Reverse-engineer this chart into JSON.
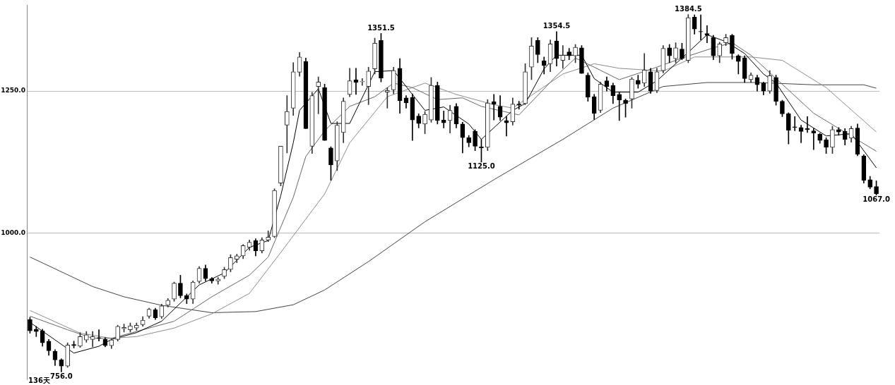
{
  "chart_data": {
    "type": "candlestick",
    "colors": [
      "#000000",
      "#000000",
      "#000000",
      "#000000",
      "#000000",
      "#000000",
      "#333333",
      "#000000",
      "#333333",
      "#333333",
      "#333333",
      "#000000",
      "#000000",
      "#333333",
      "#333333",
      "#333333",
      "#333333",
      "#333333",
      "#333333",
      "#333333",
      "#000000",
      "#333333",
      "#333333",
      "#333333",
      "#000000",
      "#000000",
      "#333333",
      "#333333",
      "#000000",
      "#000000",
      "#333333",
      "#333333",
      "#333333",
      "#333333",
      "#333333",
      "#333333",
      "#000000",
      "#333333",
      "#333333",
      "#333333",
      "#333333",
      "#333333",
      "#333333",
      "#333333",
      "#000000",
      "#333333",
      "#333333",
      "#000000",
      "#000000",
      "#333333",
      "#333333",
      "#333333",
      "#000000",
      "#333333",
      "#333333",
      "#333333",
      "#000000",
      "#333333",
      "#333333",
      "#000000",
      "#000000",
      "#000000",
      "#000000",
      "#333333",
      "#333333",
      "#000000",
      "#000000",
      "#333333",
      "#000000",
      "#000000",
      "#000000",
      "#000000",
      "#000000",
      "#333333",
      "#000000",
      "#000000",
      "#000000",
      "#333333",
      "#000000",
      "#333333",
      "#333333",
      "#000000",
      "#000000",
      "#333333",
      "#000000",
      "#333333",
      "#000000",
      "#333333",
      "#000000",
      "#000000",
      "#000000",
      "#333333",
      "#000000",
      "#000000",
      "#000000",
      "#000000",
      "#333333",
      "#000000",
      "#333333",
      "#000000",
      "#333333",
      "#333333",
      "#000000",
      "#333333",
      "#000000",
      "#333333",
      "#000000",
      "#000000",
      "#000000",
      "#000000",
      "#333333",
      "#333333",
      "#000000",
      "#000000",
      "#000000",
      "#333333",
      "#000000",
      "#000000",
      "#333333",
      "#000000",
      "#000000",
      "#000000",
      "#000000",
      "#000000",
      "#000000",
      "#000000",
      "#000000",
      "#000000",
      "#333333",
      "#000000",
      "#000000",
      "#333333",
      "#000000",
      "#000000",
      "#000000",
      "#000000"
    ],
    "categories": [
      null,
      null,
      null,
      null,
      null,
      null,
      null,
      null,
      null,
      null,
      null,
      null,
      null,
      null,
      null,
      null,
      null,
      null,
      null,
      null,
      null,
      null,
      null,
      null,
      null,
      null,
      null,
      null,
      null,
      null,
      null,
      null,
      null,
      null,
      null,
      null,
      null,
      null,
      null,
      null,
      null,
      null,
      null,
      null,
      null,
      null,
      null,
      null,
      null,
      null,
      null,
      null,
      null,
      null,
      null,
      null,
      null,
      null,
      null,
      null,
      null,
      null,
      null,
      null,
      null,
      null,
      null,
      null,
      null,
      null,
      null,
      null,
      null,
      null,
      null,
      null,
      null,
      null,
      null,
      null,
      null,
      null,
      null,
      null,
      null,
      null,
      null,
      null,
      null,
      null,
      null,
      null,
      null,
      null,
      null,
      null,
      null,
      null,
      null,
      null,
      null,
      null,
      null,
      null,
      null,
      null,
      null,
      null,
      null,
      null,
      null,
      null,
      null,
      null,
      null,
      null,
      null,
      null,
      null,
      null,
      null,
      null,
      null,
      null,
      null,
      null,
      null,
      null,
      null,
      null,
      null,
      null,
      null,
      null,
      null,
      null
    ],
    "ohlc": [
      [
        848,
        852,
        824,
        828
      ],
      [
        831,
        836,
        818,
        827
      ],
      [
        828,
        831,
        801,
        807
      ],
      [
        810,
        813,
        785,
        793
      ],
      [
        792,
        795,
        767,
        777
      ],
      [
        777,
        779,
        756,
        766
      ],
      [
        766,
        807,
        764,
        803
      ],
      [
        804,
        810,
        798,
        802
      ],
      [
        801,
        825,
        799,
        818
      ],
      [
        812,
        827,
        808,
        821
      ],
      [
        813,
        827,
        800,
        818
      ],
      [
        816,
        830,
        810,
        815
      ],
      [
        813,
        816,
        800,
        802
      ],
      [
        802,
        814,
        797,
        812
      ],
      [
        813,
        838,
        810,
        836
      ],
      [
        832,
        840,
        826,
        834
      ],
      [
        830,
        842,
        826,
        837
      ],
      [
        833,
        842,
        829,
        838
      ],
      [
        839,
        853,
        836,
        847
      ],
      [
        854,
        868,
        850,
        866
      ],
      [
        865,
        868,
        848,
        851
      ],
      [
        853,
        875,
        850,
        872
      ],
      [
        873,
        885,
        870,
        882
      ],
      [
        884,
        914,
        880,
        912
      ],
      [
        912,
        926,
        886,
        890
      ],
      [
        890,
        893,
        876,
        884
      ],
      [
        884,
        916,
        876,
        914
      ],
      [
        915,
        941,
        912,
        938
      ],
      [
        938,
        944,
        916,
        920
      ],
      [
        920,
        922,
        912,
        916
      ],
      [
        916,
        922,
        910,
        919
      ],
      [
        924,
        940,
        920,
        936
      ],
      [
        936,
        962,
        932,
        957
      ],
      [
        954,
        963,
        948,
        960
      ],
      [
        960,
        980,
        955,
        978
      ],
      [
        975,
        988,
        970,
        984
      ],
      [
        987,
        990,
        960,
        969
      ],
      [
        969,
        992,
        965,
        988
      ],
      [
        988,
        1004,
        985,
        993
      ],
      [
        994,
        1078,
        992,
        1075
      ],
      [
        1088,
        1153,
        1083,
        1153
      ],
      [
        1190,
        1242,
        1141,
        1214
      ],
      [
        1220,
        1300,
        1207,
        1284
      ],
      [
        1283,
        1318,
        1276,
        1310
      ],
      [
        1302,
        1308,
        1184,
        1184
      ],
      [
        1153,
        1248,
        1140,
        1242
      ],
      [
        1258,
        1275,
        1210,
        1266
      ],
      [
        1256,
        1262,
        1163,
        1163
      ],
      [
        1150,
        1152,
        1093,
        1120
      ],
      [
        1127,
        1196,
        1110,
        1190
      ],
      [
        1177,
        1238,
        1159,
        1232
      ],
      [
        1244,
        1290,
        1240,
        1268
      ],
      [
        1270,
        1290,
        1244,
        1265
      ],
      [
        1266,
        1272,
        1260,
        1267
      ],
      [
        1258,
        1292,
        1226,
        1285
      ],
      [
        1289,
        1343,
        1280,
        1334
      ],
      [
        1339,
        1351.5,
        1266,
        1273
      ],
      [
        1248,
        1256,
        1220,
        1251
      ],
      [
        1252,
        1292,
        1245,
        1286
      ],
      [
        1290,
        1307,
        1211,
        1233
      ],
      [
        1238,
        1242,
        1220,
        1229
      ],
      [
        1239,
        1245,
        1163,
        1199
      ],
      [
        1206,
        1210,
        1185,
        1193
      ],
      [
        1192,
        1214,
        1175,
        1209
      ],
      [
        1199,
        1274,
        1195,
        1260
      ],
      [
        1260,
        1266,
        1192,
        1198
      ],
      [
        1199,
        1215,
        1185,
        1194
      ],
      [
        1198,
        1225,
        1176,
        1216
      ],
      [
        1223,
        1228,
        1185,
        1192
      ],
      [
        1192,
        1195,
        1141,
        1168
      ],
      [
        1168,
        1172,
        1152,
        1159
      ],
      [
        1179,
        1182,
        1145,
        1153
      ],
      [
        1152,
        1165,
        1125,
        1150
      ],
      [
        1151,
        1235,
        1145,
        1229
      ],
      [
        1231,
        1244,
        1199,
        1227
      ],
      [
        1223,
        1242,
        1198,
        1204
      ],
      [
        1198,
        1205,
        1171,
        1194
      ],
      [
        1196,
        1238,
        1190,
        1227
      ],
      [
        1227,
        1232,
        1218,
        1225
      ],
      [
        1228,
        1298,
        1226,
        1284
      ],
      [
        1292,
        1344,
        1270,
        1329
      ],
      [
        1339,
        1344,
        1300,
        1314
      ],
      [
        1303,
        1310,
        1280,
        1295
      ],
      [
        1298,
        1340,
        1284,
        1333
      ],
      [
        1338,
        1354.5,
        1294,
        1307
      ],
      [
        1304,
        1330,
        1290,
        1313
      ],
      [
        1319,
        1325,
        1305,
        1312
      ],
      [
        1312,
        1332,
        1300,
        1327
      ],
      [
        1326,
        1330,
        1281,
        1281
      ],
      [
        1278,
        1282,
        1232,
        1239
      ],
      [
        1240,
        1244,
        1200,
        1211
      ],
      [
        1216,
        1266,
        1212,
        1262
      ],
      [
        1268,
        1275,
        1250,
        1258
      ],
      [
        1260,
        1264,
        1228,
        1242
      ],
      [
        1244,
        1248,
        1198,
        1234
      ],
      [
        1234,
        1236,
        1204,
        1228
      ],
      [
        1236,
        1274,
        1220,
        1271
      ],
      [
        1269,
        1278,
        1255,
        1262
      ],
      [
        1264,
        1316,
        1258,
        1287
      ],
      [
        1284,
        1290,
        1246,
        1250
      ],
      [
        1251,
        1290,
        1247,
        1284
      ],
      [
        1286,
        1330,
        1282,
        1325
      ],
      [
        1326,
        1332,
        1300,
        1312
      ],
      [
        1307,
        1335,
        1300,
        1326
      ],
      [
        1324,
        1334,
        1305,
        1307
      ],
      [
        1304,
        1384.5,
        1300,
        1379
      ],
      [
        1380,
        1384,
        1350,
        1359
      ],
      [
        1355,
        1384,
        1340,
        1354
      ],
      [
        1351,
        1365,
        1335,
        1348
      ],
      [
        1344,
        1348,
        1305,
        1312
      ],
      [
        1312,
        1336,
        1300,
        1333
      ],
      [
        1335,
        1350,
        1330,
        1344
      ],
      [
        1348,
        1350,
        1306,
        1316
      ],
      [
        1312,
        1314,
        1280,
        1302
      ],
      [
        1308,
        1312,
        1265,
        1272
      ],
      [
        1270,
        1282,
        1265,
        1278
      ],
      [
        1274,
        1278,
        1250,
        1261
      ],
      [
        1264,
        1266,
        1243,
        1250
      ],
      [
        1250,
        1286,
        1246,
        1277
      ],
      [
        1274,
        1278,
        1225,
        1232
      ],
      [
        1232,
        1234,
        1205,
        1210
      ],
      [
        1210,
        1212,
        1157,
        1181
      ],
      [
        1187,
        1205,
        1180,
        1186
      ],
      [
        1186,
        1190,
        1159,
        1179
      ],
      [
        1184,
        1205,
        1177,
        1182
      ],
      [
        1180,
        1184,
        1147,
        1176
      ],
      [
        1174,
        1176,
        1158,
        1163
      ],
      [
        1164,
        1168,
        1140,
        1151
      ],
      [
        1151,
        1188,
        1140,
        1182
      ],
      [
        1182,
        1186,
        1172,
        1178
      ],
      [
        1179,
        1184,
        1155,
        1165
      ],
      [
        1167,
        1188,
        1160,
        1184
      ],
      [
        1185,
        1192,
        1136,
        1139
      ],
      [
        1136,
        1138,
        1088,
        1093
      ],
      [
        1094,
        1100,
        1078,
        1081
      ],
      [
        1082,
        1092,
        1067,
        1069
      ]
    ],
    "series": [
      {
        "type": "line",
        "color": "#000000",
        "values": [
          843,
          null,
          null,
          null,
          null,
          null,
          null,
          789,
          null,
          null,
          null,
          801,
          null,
          813,
          null,
          null,
          null,
          825,
          null,
          null,
          null,
          845,
          null,
          null,
          null,
          null,
          null,
          909,
          null,
          null,
          null,
          930,
          null,
          null,
          null,
          975,
          null,
          null,
          987,
          null,
          1066,
          null,
          1159,
          1216,
          null,
          null,
          1254,
          null,
          1193,
          null,
          null,
          1193,
          null,
          null,
          null,
          1284,
          null,
          null,
          1286,
          null,
          null,
          1244,
          null,
          1216,
          null,
          null,
          1222,
          null,
          null,
          null,
          1192,
          null,
          1165,
          null,
          null,
          null,
          null,
          1216,
          null,
          1228,
          null,
          null,
          1289,
          null,
          1313,
          null,
          null,
          null,
          1313,
          null,
          1272,
          null,
          null,
          1248,
          null,
          null,
          null,
          1248,
          null,
          null,
          1268,
          null,
          null,
          null,
          1308,
          null,
          null,
          null,
          1349,
          null,
          null,
          1337,
          null,
          null,
          1316,
          null,
          null,
          1280,
          null,
          1264,
          null,
          null,
          null,
          1199,
          null,
          null,
          null,
          1171,
          null,
          null,
          null,
          1175,
          null,
          null,
          null,
          1115
        ]
      },
      {
        "type": "line",
        "color": "#666666",
        "values": [
          854,
          null,
          null,
          null,
          null,
          null,
          830,
          null,
          null,
          null,
          815,
          null,
          null,
          815,
          null,
          null,
          null,
          null,
          null,
          null,
          null,
          null,
          null,
          845,
          null,
          null,
          null,
          null,
          null,
          888,
          null,
          null,
          null,
          null,
          null,
          926,
          null,
          null,
          958,
          null,
          null,
          null,
          1063,
          null,
          1135,
          null,
          null,
          1180,
          null,
          null,
          null,
          1223,
          null,
          null,
          null,
          1240,
          null,
          null,
          1264,
          null,
          null,
          1256,
          null,
          null,
          null,
          1235,
          null,
          null,
          null,
          1238,
          null,
          null,
          1223,
          null,
          null,
          null,
          null,
          null,
          1208,
          null,
          null,
          null,
          null,
          null,
          1277,
          null,
          null,
          1308,
          null,
          null,
          1292,
          null,
          null,
          null,
          1270,
          null,
          null,
          null,
          null,
          null,
          1292,
          null,
          null,
          null,
          1308,
          null,
          null,
          null,
          null,
          1326,
          null,
          null,
          1335,
          null,
          null,
          1313,
          null,
          null,
          null,
          1272,
          null,
          null,
          null,
          null,
          null,
          1211,
          null,
          null,
          null,
          null,
          null,
          null,
          null,
          null,
          null,
          1144
        ]
      },
      {
        "type": "line",
        "color": "#8c8c8c",
        "values": [
          864,
          null,
          null,
          null,
          null,
          null,
          null,
          null,
          824,
          null,
          null,
          null,
          null,
          815,
          null,
          null,
          null,
          818,
          null,
          null,
          null,
          null,
          null,
          833,
          null,
          null,
          null,
          null,
          null,
          858,
          null,
          null,
          null,
          null,
          null,
          894,
          null,
          null,
          null,
          null,
          966,
          null,
          null,
          null,
          null,
          null,
          null,
          1069,
          null,
          null,
          null,
          1159,
          null,
          null,
          null,
          null,
          null,
          1240,
          null,
          null,
          null,
          null,
          null,
          1264,
          null,
          null,
          null,
          null,
          1244,
          null,
          null,
          null,
          null,
          null,
          1226,
          null,
          null,
          1220,
          null,
          null,
          null,
          null,
          null,
          null,
          null,
          1280,
          null,
          null,
          null,
          null,
          1298,
          null,
          null,
          null,
          1290,
          null,
          null,
          null,
          null,
          null,
          null,
          1285,
          null,
          null,
          null,
          null,
          1310,
          null,
          null,
          null,
          null,
          null,
          null,
          null,
          null,
          1310,
          null,
          null,
          null,
          null,
          1304,
          null,
          null,
          null,
          null,
          null,
          null,
          1256,
          null,
          null,
          null,
          null,
          null,
          null,
          null,
          1178
        ]
      },
      {
        "type": "line",
        "color": "#444444",
        "values": [
          958,
          null,
          null,
          null,
          null,
          null,
          null,
          null,
          null,
          null,
          906,
          null,
          null,
          null,
          null,
          888,
          null,
          null,
          null,
          null,
          null,
          873,
          null,
          null,
          null,
          null,
          null,
          null,
          null,
          860,
          null,
          null,
          null,
          null,
          null,
          null,
          862,
          null,
          null,
          null,
          null,
          null,
          874,
          null,
          null,
          null,
          null,
          900,
          null,
          null,
          null,
          null,
          null,
          null,
          950,
          null,
          null,
          null,
          null,
          null,
          null,
          null,
          null,
          1020,
          null,
          null,
          null,
          null,
          null,
          null,
          null,
          null,
          null,
          null,
          1094,
          null,
          null,
          null,
          null,
          null,
          null,
          null,
          null,
          null,
          null,
          1165,
          null,
          null,
          null,
          null,
          null,
          null,
          null,
          1220,
          null,
          null,
          null,
          null,
          null,
          null,
          null,
          1258,
          null,
          null,
          null,
          null,
          null,
          null,
          1265,
          null,
          null,
          null,
          null,
          null,
          null,
          null,
          1265,
          null,
          null,
          null,
          null,
          null,
          null,
          null,
          null,
          1261,
          null,
          null,
          null,
          null,
          null,
          null,
          null,
          1261,
          null,
          1255
        ]
      }
    ],
    "ylim": [
      742,
      1401
    ],
    "yticks": [
      {
        "value": 1000,
        "label": "1000.0"
      },
      {
        "value": 1250,
        "label": "1250.0"
      }
    ],
    "grid": "y",
    "line_style": "solid",
    "marker": "none",
    "legend": false,
    "tick_labels": "y",
    "annotations": [
      {
        "text": "756.0",
        "y": 756
      },
      {
        "text": "1351.5",
        "y": 1351.5
      },
      {
        "text": "1125.0",
        "y": 1125
      },
      {
        "text": "1354.5",
        "y": 1354.5
      },
      {
        "text": "1384.5",
        "y": 1384.5
      },
      {
        "text": "1067.0",
        "y": 1067
      },
      "136天"
    ]
  }
}
